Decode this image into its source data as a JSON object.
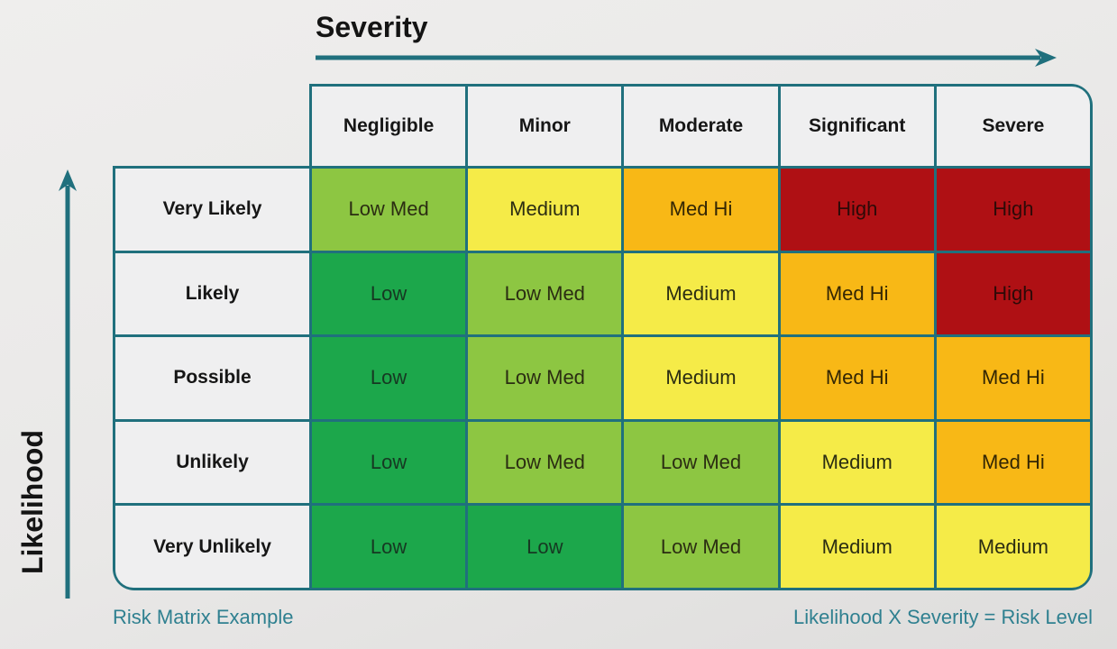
{
  "axes": {
    "x_title": "Severity",
    "y_title": "Likelihood"
  },
  "footer": {
    "left": "Risk Matrix Example",
    "right": "Likelihood X Severity = Risk Level"
  },
  "chart_data": {
    "type": "heatmap",
    "title": "Risk Matrix Example",
    "x_axis_label": "Severity",
    "y_axis_label": "Likelihood",
    "columns": [
      "Negligible",
      "Minor",
      "Moderate",
      "Significant",
      "Severe"
    ],
    "rows": [
      "Very Likely",
      "Likely",
      "Possible",
      "Unlikely",
      "Very Unlikely"
    ],
    "cells": [
      [
        "Low Med",
        "Medium",
        "Med Hi",
        "High",
        "High"
      ],
      [
        "Low",
        "Low Med",
        "Medium",
        "Med Hi",
        "High"
      ],
      [
        "Low",
        "Low Med",
        "Medium",
        "Med Hi",
        "Med Hi"
      ],
      [
        "Low",
        "Low Med",
        "Low Med",
        "Medium",
        "Med Hi"
      ],
      [
        "Low",
        "Low",
        "Low Med",
        "Medium",
        "Medium"
      ]
    ],
    "formula_note": "Likelihood X Severity = Risk Level",
    "legend_position": "none",
    "grid": true
  },
  "colors": {
    "border_teal": "#20707D",
    "header_bg": "#EFEFF0",
    "axis_text": "#141414",
    "caption_text": "#2F8090",
    "levels": {
      "Low": "#1CA74B",
      "Low Med": "#8DC642",
      "Medium": "#F5EB48",
      "Med Hi": "#F8B816",
      "High": "#AF1014"
    },
    "level_text": {
      "Low": "#163822",
      "Low Med": "#2B2D12",
      "Medium": "#2B2D12",
      "Med Hi": "#332604",
      "High": "#2D0A08"
    }
  }
}
